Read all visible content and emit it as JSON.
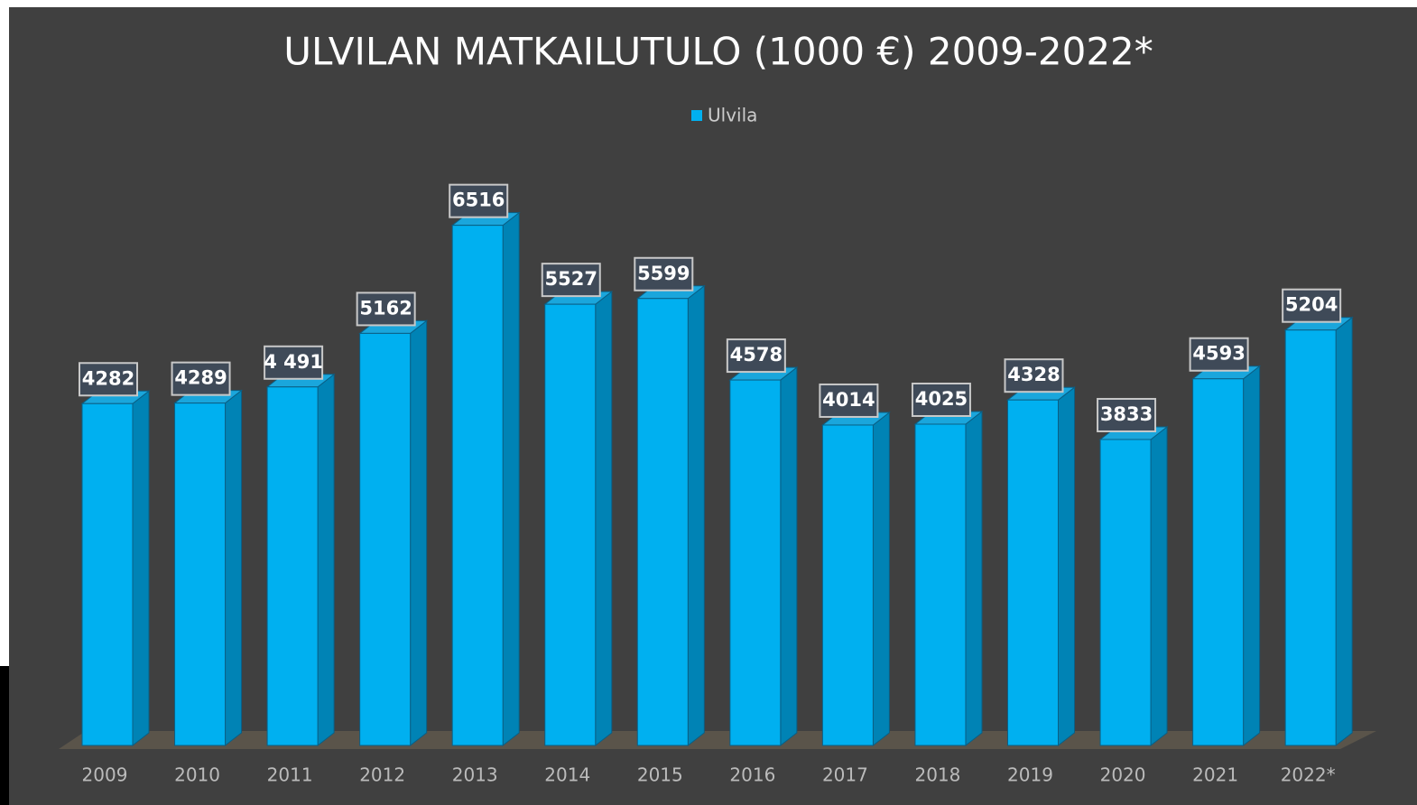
{
  "chart_data": {
    "type": "bar3d",
    "title": "ULVILAN MATKAILUTULO (1000 €) 2009-2022*",
    "categories": [
      "2009",
      "2010",
      "2011",
      "2012",
      "2013",
      "2014",
      "2015",
      "2016",
      "2017",
      "2018",
      "2019",
      "2020",
      "2021",
      "2022*"
    ],
    "series": [
      {
        "name": "Ulvila",
        "color": "#00b0f0",
        "values": [
          4282,
          4289,
          4491,
          5162,
          6516,
          5527,
          5599,
          4578,
          4014,
          4025,
          4328,
          3833,
          4593,
          5204
        ],
        "value_labels": [
          "4282",
          "4289",
          "4 491",
          "5162",
          "6516",
          "5527",
          "5599",
          "4578",
          "4014",
          "4025",
          "4328",
          "3833",
          "4593",
          "5204"
        ]
      }
    ],
    "legend": "top"
  }
}
